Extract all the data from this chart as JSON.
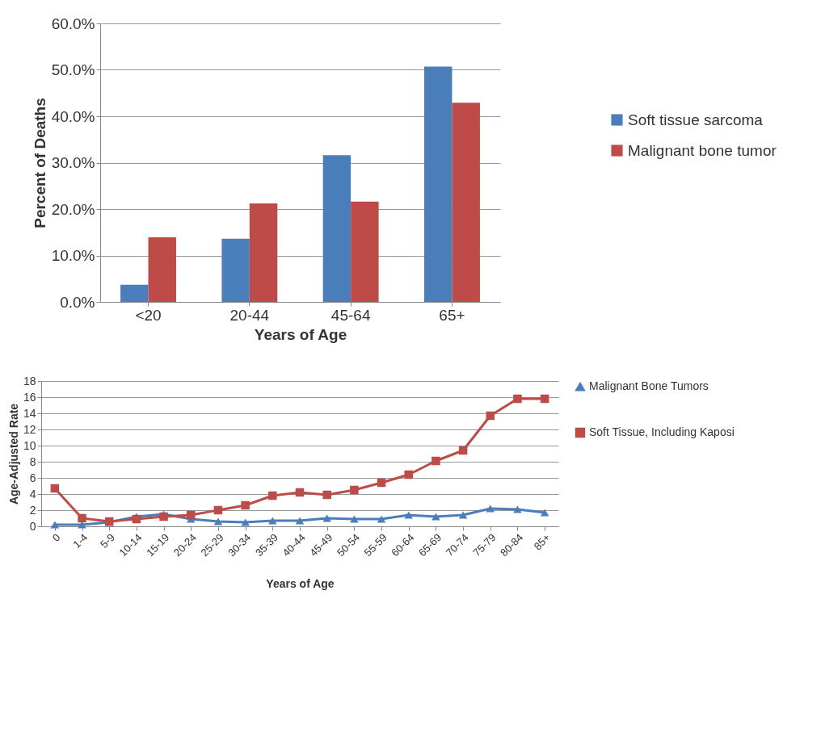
{
  "chart_data": [
    {
      "type": "bar",
      "xlabel": "Years of Age",
      "ylabel": "Percent of Deaths",
      "categories": [
        "<20",
        "20-44",
        "45-64",
        "65+"
      ],
      "series": [
        {
          "name": "Soft tissue sarcoma",
          "color": "#4a7ebb",
          "values": [
            3.7,
            13.6,
            31.6,
            50.7
          ]
        },
        {
          "name": "Malignant bone tumor",
          "color": "#be4b48",
          "values": [
            13.9,
            21.2,
            21.6,
            42.9
          ]
        }
      ],
      "ylim": [
        0,
        60
      ],
      "yticks": [
        {
          "value": 0,
          "label": "0.0%"
        },
        {
          "value": 10,
          "label": "10.0%"
        },
        {
          "value": 20,
          "label": "20.0%"
        },
        {
          "value": 30,
          "label": "30.0%"
        },
        {
          "value": 40,
          "label": "40.0%"
        },
        {
          "value": 50,
          "label": "50.0%"
        },
        {
          "value": 60,
          "label": "60.0%"
        }
      ],
      "grid": "y",
      "legend": "right"
    },
    {
      "type": "line",
      "xlabel": "Years of Age",
      "ylabel": "Age-Adjusted Rate",
      "categories": [
        "0",
        "1-4",
        "5-9",
        "10-14",
        "15-19",
        "20-24",
        "25-29",
        "30-34",
        "35-39",
        "40-44",
        "45-49",
        "50-54",
        "55-59",
        "60-64",
        "65-69",
        "70-74",
        "75-79",
        "80-84",
        "85+"
      ],
      "series": [
        {
          "name": "Malignant Bone Tumors",
          "color": "#4a7ebb",
          "marker": "triangle",
          "values": [
            0.2,
            0.2,
            0.5,
            1.2,
            1.5,
            0.9,
            0.6,
            0.5,
            0.7,
            0.7,
            1.0,
            0.9,
            0.9,
            1.4,
            1.2,
            1.4,
            2.2,
            2.1,
            1.7
          ]
        },
        {
          "name": "Soft Tissue, Including Kaposi",
          "color": "#be4b48",
          "marker": "square",
          "values": [
            4.7,
            1.0,
            0.6,
            0.9,
            1.2,
            1.4,
            2.0,
            2.6,
            3.8,
            4.2,
            3.9,
            4.5,
            5.4,
            6.4,
            8.1,
            9.4,
            13.7,
            15.8,
            15.8
          ]
        }
      ],
      "ylim": [
        0,
        18
      ],
      "yticks": [
        0,
        2,
        4,
        6,
        8,
        10,
        12,
        14,
        16,
        18
      ],
      "grid": "y",
      "legend": "right"
    }
  ]
}
